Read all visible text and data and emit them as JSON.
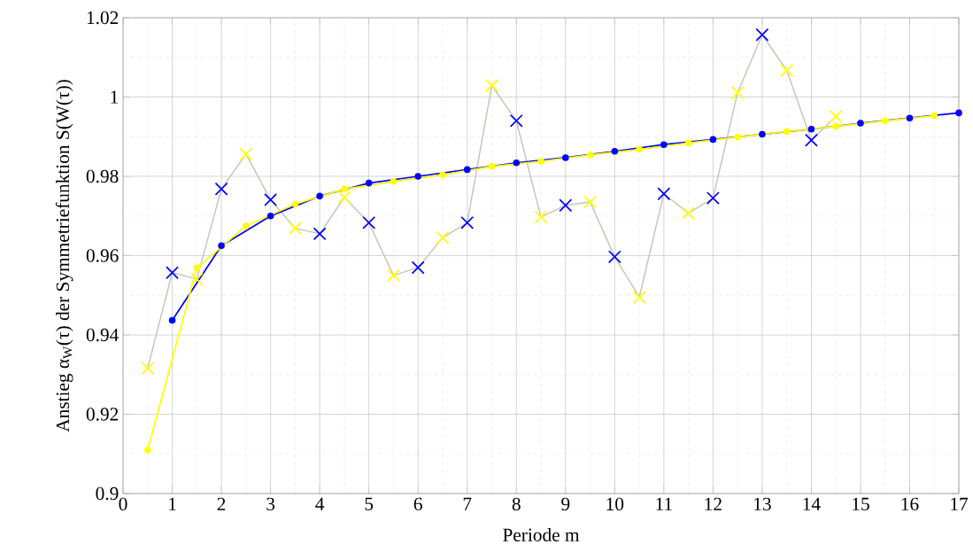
{
  "chart_data": {
    "type": "line",
    "xlabel": "Periode m",
    "ylabel": "Anstieg α$_{W}$(τ) der Symmetriefunktion S(W(τ))",
    "xlim": [
      0,
      17
    ],
    "ylim": [
      0.9,
      1.02
    ],
    "xticks": [
      0,
      1,
      2,
      3,
      4,
      5,
      6,
      7,
      8,
      9,
      10,
      11,
      12,
      13,
      14,
      15,
      16,
      17
    ],
    "yticks": [
      0.9,
      0.92,
      0.94,
      0.96,
      0.98,
      1,
      1.02
    ],
    "grid": true,
    "series": [
      {
        "color": "#c8c4bc",
        "marker": "none",
        "x": [
          0.5,
          1,
          1.5,
          2,
          2.5,
          3,
          3.5,
          4,
          4.5,
          5,
          5.5,
          6,
          6.5,
          7,
          7.5,
          8,
          8.5,
          9,
          9.5,
          10,
          10.5,
          11,
          11.5,
          12,
          12.5,
          13,
          13.5,
          14,
          14.5
        ],
        "values": [
          0.9316,
          0.9557,
          0.9541,
          0.9768,
          0.9856,
          0.9741,
          0.9669,
          0.9655,
          0.9747,
          0.9683,
          0.955,
          0.957,
          0.9645,
          0.9683,
          1.0029,
          0.994,
          0.9697,
          0.9727,
          0.9735,
          0.9597,
          0.9495,
          0.9756,
          0.9707,
          0.9745,
          1.0011,
          1.0157,
          1.0067,
          0.9891,
          0.9951
        ]
      },
      {
        "color": "#0000ff",
        "marker": "circle",
        "x": [
          1,
          2,
          3,
          4,
          5,
          6,
          7,
          8,
          9,
          10,
          11,
          12,
          13,
          14,
          15,
          16,
          17
        ],
        "values": [
          0.9437,
          0.9625,
          0.97,
          0.975,
          0.9783,
          0.98,
          0.9817,
          0.9834,
          0.9847,
          0.9863,
          0.988,
          0.9893,
          0.9906,
          0.9919,
          0.9934,
          0.9947,
          0.996
        ]
      },
      {
        "color": "#ffff00",
        "marker": "circle",
        "x": [
          0.5,
          1.5,
          2.5,
          3.5,
          4.5,
          5.5,
          6.5,
          7.5,
          8.5,
          9.5,
          10.5,
          11.5,
          12.5,
          13.5,
          14.5,
          15.5,
          16.5
        ],
        "values": [
          0.911,
          0.9569,
          0.9675,
          0.973,
          0.9768,
          0.9787,
          0.9804,
          0.9825,
          0.9838,
          0.9854,
          0.9868,
          0.9884,
          0.9899,
          0.9913,
          0.9926,
          0.994,
          0.9953
        ]
      },
      {
        "type": "scatter",
        "color": "#0000ff",
        "marker": "cross",
        "x": [
          1,
          2,
          3,
          4,
          5,
          6,
          7,
          8,
          9,
          10,
          11,
          12,
          13,
          14
        ],
        "values": [
          0.9557,
          0.9768,
          0.9741,
          0.9655,
          0.9683,
          0.957,
          0.9683,
          0.994,
          0.9727,
          0.9597,
          0.9756,
          0.9745,
          1.0157,
          0.9891
        ]
      },
      {
        "type": "scatter",
        "color": "#ffff00",
        "marker": "cross",
        "x": [
          0.5,
          1.5,
          2.5,
          3.5,
          4.5,
          5.5,
          6.5,
          7.5,
          8.5,
          9.5,
          10.5,
          11.5,
          12.5,
          13.5,
          14.5
        ],
        "values": [
          0.9316,
          0.9541,
          0.9856,
          0.9669,
          0.9747,
          0.955,
          0.9645,
          1.0029,
          0.9697,
          0.9735,
          0.9495,
          0.9707,
          1.0011,
          1.0067,
          0.9951
        ]
      }
    ]
  }
}
